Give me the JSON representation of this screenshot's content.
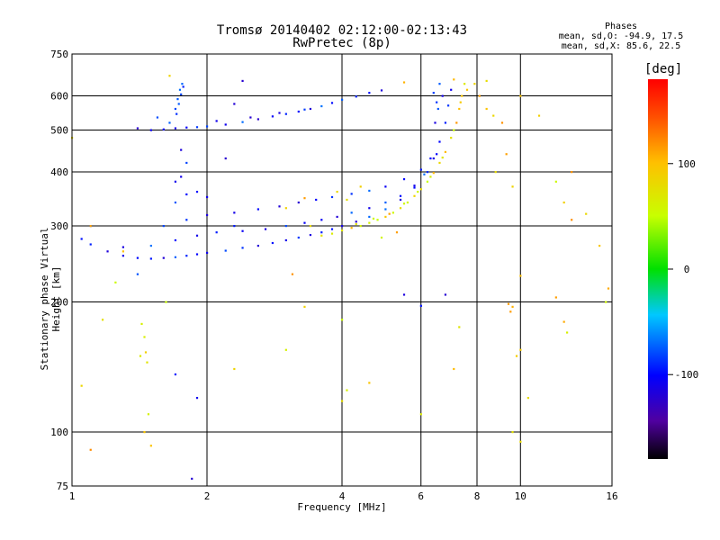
{
  "header": {
    "title_line1": "Tromsø 20140402 02:12:00-02:13:43",
    "title_line2": "RwPretec (8p)",
    "phase_title": "Phases",
    "phase_line1": "mean, sd,O: -94.9, 17.5",
    "phase_line2": "mean, sd,X:  85.6, 22.5"
  },
  "chart_data": {
    "type": "scatter",
    "title": "Tromsø 20140402 02:12:00-02:13:43",
    "subtitle": "RwPretec (8p)",
    "xlabel": "Frequency [MHz]",
    "ylabel": "Stationary phase Virtual Height [km]",
    "xscale": "log",
    "yscale": "log",
    "xlim": [
      1,
      16
    ],
    "ylim": [
      75,
      750
    ],
    "xticks": [
      "1",
      "2",
      "4",
      "6",
      "8",
      "10",
      "16"
    ],
    "xtick_values": [
      1,
      2,
      4,
      6,
      8,
      10,
      16
    ],
    "yticks": [
      "75",
      "100",
      "200",
      "300",
      "400",
      "500",
      "600",
      "750"
    ],
    "ytick_values": [
      75,
      100,
      200,
      300,
      400,
      500,
      600,
      750
    ],
    "grid": true,
    "colorbar": {
      "unit": "[deg]",
      "range": [
        -180,
        180
      ],
      "ticks": [
        "100",
        "0",
        "-100"
      ],
      "tick_values": [
        100,
        0,
        -100
      ]
    },
    "series": [
      {
        "mode": "O",
        "phase_mean": -94.9,
        "phase_sd": 17.5,
        "points": [
          [
            1.05,
            280
          ],
          [
            1.1,
            272
          ],
          [
            1.2,
            262
          ],
          [
            1.3,
            256
          ],
          [
            1.4,
            253
          ],
          [
            1.5,
            252
          ],
          [
            1.6,
            253
          ],
          [
            1.7,
            254
          ],
          [
            1.8,
            256
          ],
          [
            1.9,
            258
          ],
          [
            2.0,
            260
          ],
          [
            2.2,
            263
          ],
          [
            2.4,
            267
          ],
          [
            2.6,
            270
          ],
          [
            2.8,
            274
          ],
          [
            3.0,
            278
          ],
          [
            3.2,
            282
          ],
          [
            3.4,
            286
          ],
          [
            3.6,
            290
          ],
          [
            3.8,
            295
          ],
          [
            4.0,
            300
          ],
          [
            4.3,
            307
          ],
          [
            4.6,
            315
          ],
          [
            5.0,
            328
          ],
          [
            5.4,
            345
          ],
          [
            5.8,
            368
          ],
          [
            6.1,
            395
          ],
          [
            6.4,
            430
          ],
          [
            6.6,
            470
          ],
          [
            6.8,
            520
          ],
          [
            6.9,
            570
          ],
          [
            7.0,
            620
          ],
          [
            1.3,
            268
          ],
          [
            1.5,
            270
          ],
          [
            1.7,
            278
          ],
          [
            1.9,
            285
          ],
          [
            2.1,
            290
          ],
          [
            2.4,
            292
          ],
          [
            2.7,
            295
          ],
          [
            3.0,
            300
          ],
          [
            3.3,
            305
          ],
          [
            3.6,
            310
          ],
          [
            3.9,
            315
          ],
          [
            4.2,
            322
          ],
          [
            4.6,
            330
          ],
          [
            5.0,
            340
          ],
          [
            5.4,
            352
          ],
          [
            5.8,
            372
          ],
          [
            6.2,
            400
          ],
          [
            6.5,
            440
          ],
          [
            1.6,
            300
          ],
          [
            1.8,
            310
          ],
          [
            2.0,
            318
          ],
          [
            2.3,
            322
          ],
          [
            2.6,
            328
          ],
          [
            2.9,
            333
          ],
          [
            3.2,
            340
          ],
          [
            3.5,
            345
          ],
          [
            3.8,
            350
          ],
          [
            4.2,
            356
          ],
          [
            4.6,
            362
          ],
          [
            5.0,
            370
          ],
          [
            5.5,
            385
          ],
          [
            6.0,
            405
          ],
          [
            6.3,
            430
          ],
          [
            1.7,
            340
          ],
          [
            1.8,
            355
          ],
          [
            1.9,
            360
          ],
          [
            2.0,
            350
          ],
          [
            1.75,
            390
          ],
          [
            1.8,
            420
          ],
          [
            1.75,
            450
          ],
          [
            1.7,
            380
          ],
          [
            1.7,
            560
          ],
          [
            1.72,
            590
          ],
          [
            1.74,
            620
          ],
          [
            1.76,
            640
          ],
          [
            1.73,
            575
          ],
          [
            1.75,
            605
          ],
          [
            1.71,
            545
          ],
          [
            1.77,
            630
          ],
          [
            1.4,
            505
          ],
          [
            1.5,
            500
          ],
          [
            1.6,
            502
          ],
          [
            1.7,
            505
          ],
          [
            1.8,
            507
          ],
          [
            1.9,
            508
          ],
          [
            2.0,
            510
          ],
          [
            2.2,
            515
          ],
          [
            2.4,
            522
          ],
          [
            2.6,
            530
          ],
          [
            2.8,
            538
          ],
          [
            3.0,
            545
          ],
          [
            3.2,
            552
          ],
          [
            3.4,
            560
          ],
          [
            3.6,
            568
          ],
          [
            3.8,
            578
          ],
          [
            4.0,
            588
          ],
          [
            4.3,
            598
          ],
          [
            4.6,
            610
          ],
          [
            4.9,
            618
          ],
          [
            1.55,
            535
          ],
          [
            1.65,
            520
          ],
          [
            2.1,
            525
          ],
          [
            2.5,
            535
          ],
          [
            2.9,
            548
          ],
          [
            3.3,
            558
          ],
          [
            6.4,
            610
          ],
          [
            6.5,
            580
          ],
          [
            6.6,
            640
          ],
          [
            6.7,
            600
          ],
          [
            6.55,
            560
          ],
          [
            6.45,
            520
          ],
          [
            2.4,
            650
          ],
          [
            2.3,
            575
          ],
          [
            2.2,
            430
          ],
          [
            2.3,
            300
          ],
          [
            1.4,
            232
          ],
          [
            1.1,
            300
          ],
          [
            5.5,
            208
          ],
          [
            6.0,
            196
          ],
          [
            6.8,
            208
          ],
          [
            1.9,
            120
          ],
          [
            1.7,
            136
          ],
          [
            1.85,
            78
          ]
        ]
      },
      {
        "mode": "X",
        "phase_mean": 85.6,
        "phase_sd": 22.5,
        "points": [
          [
            3.6,
            285
          ],
          [
            3.8,
            288
          ],
          [
            4.0,
            293
          ],
          [
            4.2,
            297
          ],
          [
            4.4,
            300
          ],
          [
            4.6,
            305
          ],
          [
            4.8,
            310
          ],
          [
            5.0,
            315
          ],
          [
            5.2,
            322
          ],
          [
            5.4,
            330
          ],
          [
            5.6,
            340
          ],
          [
            5.8,
            352
          ],
          [
            6.0,
            365
          ],
          [
            6.2,
            380
          ],
          [
            6.4,
            398
          ],
          [
            6.6,
            420
          ],
          [
            6.8,
            445
          ],
          [
            7.0,
            480
          ],
          [
            7.2,
            520
          ],
          [
            7.3,
            560
          ],
          [
            7.4,
            600
          ],
          [
            7.5,
            640
          ],
          [
            4.3,
            303
          ],
          [
            4.7,
            312
          ],
          [
            5.1,
            320
          ],
          [
            5.5,
            338
          ],
          [
            5.9,
            360
          ],
          [
            6.3,
            390
          ],
          [
            6.7,
            432
          ],
          [
            7.1,
            500
          ],
          [
            7.35,
            580
          ],
          [
            3.9,
            360
          ],
          [
            4.1,
            345
          ],
          [
            4.4,
            370
          ],
          [
            3.3,
            348
          ],
          [
            3.0,
            330
          ],
          [
            3.4,
            300
          ],
          [
            4.9,
            282
          ],
          [
            5.3,
            290
          ],
          [
            7.6,
            620
          ],
          [
            7.9,
            640
          ],
          [
            8.1,
            600
          ],
          [
            8.4,
            560
          ],
          [
            8.7,
            540
          ],
          [
            9.1,
            520
          ],
          [
            9.3,
            440
          ],
          [
            8.8,
            400
          ],
          [
            9.6,
            370
          ],
          [
            10.0,
            230
          ],
          [
            9.6,
            195
          ],
          [
            9.4,
            198
          ],
          [
            12.5,
            340
          ],
          [
            13.0,
            310
          ],
          [
            15.0,
            270
          ],
          [
            15.7,
            215
          ],
          [
            14.0,
            320
          ],
          [
            12.0,
            380
          ],
          [
            13.0,
            400
          ],
          [
            11.0,
            540
          ],
          [
            10.0,
            600
          ],
          [
            8.4,
            650
          ],
          [
            7.1,
            655
          ],
          [
            5.5,
            645
          ],
          [
            1.65,
            668
          ],
          [
            1.0,
            480
          ],
          [
            1.1,
            300
          ],
          [
            1.3,
            262
          ],
          [
            1.25,
            222
          ],
          [
            1.17,
            182
          ],
          [
            1.05,
            128
          ],
          [
            1.1,
            91
          ],
          [
            1.45,
            100
          ],
          [
            1.48,
            110
          ],
          [
            1.5,
            93
          ],
          [
            1.43,
            178
          ],
          [
            1.45,
            166
          ],
          [
            1.46,
            153
          ],
          [
            1.47,
            145
          ],
          [
            1.62,
            200
          ],
          [
            3.1,
            232
          ],
          [
            3.3,
            195
          ],
          [
            4.0,
            182
          ],
          [
            4.0,
            118
          ],
          [
            4.1,
            125
          ],
          [
            4.6,
            130
          ],
          [
            6.0,
            110
          ],
          [
            7.1,
            140
          ],
          [
            7.3,
            175
          ],
          [
            9.5,
            190
          ],
          [
            10.0,
            155
          ],
          [
            10.4,
            120
          ],
          [
            12.5,
            180
          ],
          [
            12.7,
            170
          ],
          [
            9.6,
            100
          ],
          [
            10.0,
            95
          ],
          [
            12.0,
            205
          ],
          [
            9.8,
            150
          ],
          [
            15.5,
            200
          ],
          [
            3.0,
            155
          ],
          [
            2.3,
            140
          ],
          [
            1.42,
            150
          ]
        ]
      }
    ]
  }
}
